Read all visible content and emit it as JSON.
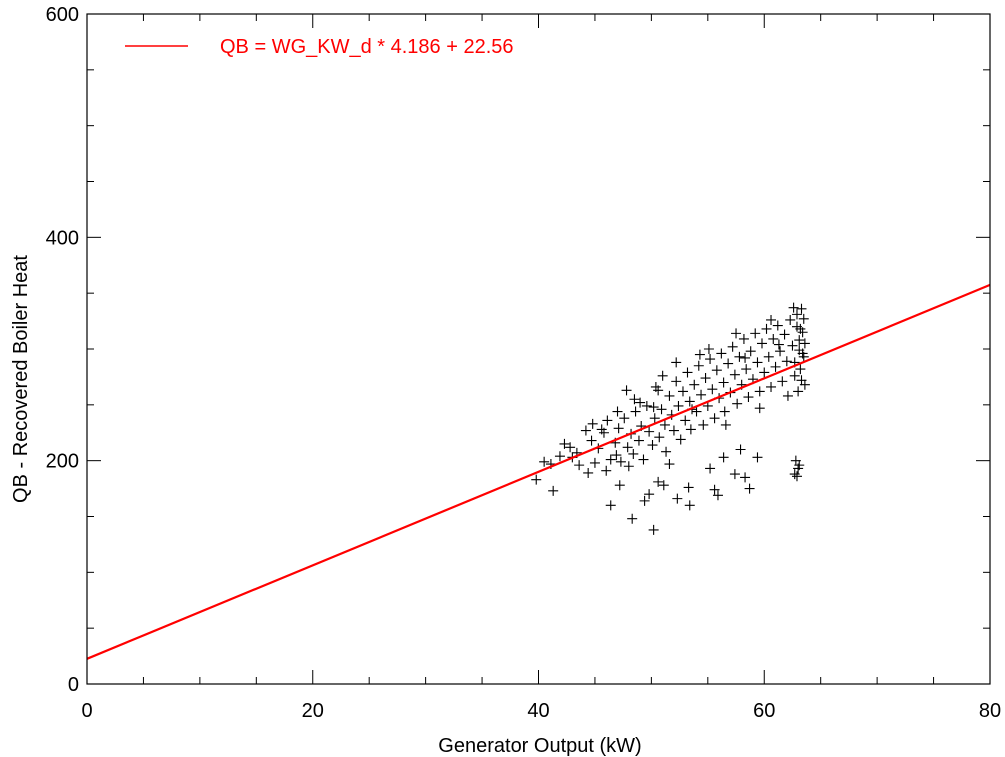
{
  "chart_data": {
    "type": "scatter",
    "title": "",
    "xlabel": "Generator Output (kW)",
    "ylabel": "QB - Recovered Boiler Heat",
    "xlim": [
      0,
      80
    ],
    "ylim": [
      0,
      600
    ],
    "xticks": [
      0,
      20,
      40,
      60,
      80
    ],
    "yticks": [
      0,
      200,
      400,
      600
    ],
    "x_minor_step": 5,
    "y_minor_step": 50,
    "grid": false,
    "legend_position": "top-left",
    "series": [
      {
        "kind": "scatter",
        "marker": "plus",
        "color": "#000000",
        "points": [
          [
            39.8,
            183
          ],
          [
            40.5,
            199
          ],
          [
            41.3,
            173
          ],
          [
            41.1,
            197
          ],
          [
            41.9,
            204
          ],
          [
            42.3,
            215
          ],
          [
            42.8,
            212
          ],
          [
            43.4,
            207
          ],
          [
            43.6,
            196
          ],
          [
            44.2,
            227
          ],
          [
            44.7,
            218
          ],
          [
            45.0,
            198
          ],
          [
            45.3,
            211
          ],
          [
            45.8,
            225
          ],
          [
            46.1,
            236
          ],
          [
            46.0,
            191
          ],
          [
            46.4,
            201
          ],
          [
            46.8,
            216
          ],
          [
            47.1,
            229
          ],
          [
            47.3,
            199
          ],
          [
            47.6,
            238
          ],
          [
            47.9,
            212
          ],
          [
            48.2,
            224
          ],
          [
            48.4,
            206
          ],
          [
            48.6,
            244
          ],
          [
            48.9,
            218
          ],
          [
            49.1,
            231
          ],
          [
            49.3,
            201
          ],
          [
            49.6,
            249
          ],
          [
            49.8,
            226
          ],
          [
            50.1,
            214
          ],
          [
            50.3,
            238
          ],
          [
            50.4,
            266
          ],
          [
            50.7,
            221
          ],
          [
            50.9,
            246
          ],
          [
            51.2,
            232
          ],
          [
            51.3,
            208
          ],
          [
            51.6,
            258
          ],
          [
            51.8,
            241
          ],
          [
            52.0,
            227
          ],
          [
            52.2,
            271
          ],
          [
            52.4,
            249
          ],
          [
            52.6,
            219
          ],
          [
            52.8,
            262
          ],
          [
            53.0,
            236
          ],
          [
            53.2,
            279
          ],
          [
            53.4,
            253
          ],
          [
            53.5,
            228
          ],
          [
            53.8,
            268
          ],
          [
            54.0,
            244
          ],
          [
            54.2,
            285
          ],
          [
            54.4,
            259
          ],
          [
            54.6,
            232
          ],
          [
            54.8,
            274
          ],
          [
            55.0,
            249
          ],
          [
            55.2,
            291
          ],
          [
            55.4,
            264
          ],
          [
            55.6,
            238
          ],
          [
            55.8,
            281
          ],
          [
            56.0,
            256
          ],
          [
            56.2,
            296
          ],
          [
            56.4,
            270
          ],
          [
            56.5,
            244
          ],
          [
            56.8,
            287
          ],
          [
            57.0,
            261
          ],
          [
            57.2,
            302
          ],
          [
            57.4,
            277
          ],
          [
            57.6,
            251
          ],
          [
            57.8,
            293
          ],
          [
            58.0,
            268
          ],
          [
            58.2,
            309
          ],
          [
            58.4,
            282
          ],
          [
            58.6,
            257
          ],
          [
            58.8,
            298
          ],
          [
            59.0,
            273
          ],
          [
            59.2,
            314
          ],
          [
            59.4,
            288
          ],
          [
            59.6,
            262
          ],
          [
            59.8,
            305
          ],
          [
            60.0,
            279
          ],
          [
            60.2,
            318
          ],
          [
            60.4,
            293
          ],
          [
            60.6,
            266
          ],
          [
            60.8,
            309
          ],
          [
            61.0,
            284
          ],
          [
            61.2,
            321
          ],
          [
            61.4,
            298
          ],
          [
            61.6,
            271
          ],
          [
            61.8,
            313
          ],
          [
            62.0,
            289
          ],
          [
            62.3,
            326
          ],
          [
            62.5,
            303
          ],
          [
            62.7,
            276
          ],
          [
            62.9,
            331
          ],
          [
            63.1,
            308
          ],
          [
            63.2,
            282
          ],
          [
            63.3,
            336
          ],
          [
            63.4,
            315
          ],
          [
            63.5,
            293
          ],
          [
            63.6,
            268
          ],
          [
            62.6,
            337
          ],
          [
            62.9,
            320
          ],
          [
            63.1,
            299
          ],
          [
            63.3,
            272
          ],
          [
            63.5,
            327
          ],
          [
            63.6,
            305
          ],
          [
            62.7,
            288
          ],
          [
            63.0,
            262
          ],
          [
            63.2,
            318
          ],
          [
            63.4,
            296
          ],
          [
            49.0,
            252
          ],
          [
            50.6,
            263
          ],
          [
            52.2,
            288
          ],
          [
            53.6,
            246
          ],
          [
            55.1,
            300
          ],
          [
            56.6,
            232
          ],
          [
            58.3,
            292
          ],
          [
            59.6,
            247
          ],
          [
            61.3,
            304
          ],
          [
            62.1,
            258
          ],
          [
            45.6,
            228
          ],
          [
            47.0,
            244
          ],
          [
            48.5,
            255
          ],
          [
            51.0,
            276
          ],
          [
            54.3,
            295
          ],
          [
            57.5,
            314
          ],
          [
            60.6,
            326
          ],
          [
            44.8,
            233
          ],
          [
            47.8,
            263
          ],
          [
            50.2,
            248
          ],
          [
            46.4,
            160
          ],
          [
            48.3,
            148
          ],
          [
            49.4,
            164
          ],
          [
            50.2,
            138
          ],
          [
            51.1,
            178
          ],
          [
            52.3,
            166
          ],
          [
            53.3,
            176
          ],
          [
            53.4,
            160
          ],
          [
            55.6,
            174
          ],
          [
            55.9,
            169
          ],
          [
            57.4,
            188
          ],
          [
            58.3,
            185
          ],
          [
            58.7,
            175
          ],
          [
            59.4,
            203
          ],
          [
            62.8,
            200
          ],
          [
            63.0,
            193
          ],
          [
            62.7,
            188
          ],
          [
            63.1,
            196
          ],
          [
            47.2,
            178
          ],
          [
            48.0,
            195
          ],
          [
            49.8,
            170
          ],
          [
            50.6,
            181
          ],
          [
            51.6,
            197
          ],
          [
            46.9,
            205
          ],
          [
            43.0,
            203
          ],
          [
            44.4,
            189
          ],
          [
            55.2,
            193
          ],
          [
            56.4,
            203
          ],
          [
            57.9,
            210
          ],
          [
            62.9,
            186
          ]
        ]
      },
      {
        "kind": "line",
        "name": "QB = WG_KW_d * 4.186 + 22.56",
        "color": "#ff0000",
        "slope": 4.186,
        "intercept": 22.56
      }
    ]
  }
}
